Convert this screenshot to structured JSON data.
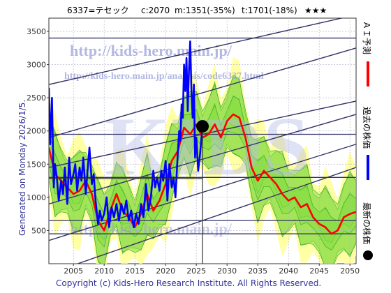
{
  "header": {
    "code_name": "6337=テセック",
    "current": "c:2070",
    "min": "m:1351(-35%)",
    "target": "t:1701(-18%)",
    "stars": "★★★"
  },
  "watermark": {
    "url1": "http://kids-hero.main.jp/",
    "url2": "http://kids-hero.main.jp/analysis/code6337.html",
    "big": "KIDS"
  },
  "generated_label": "Generated on Monday 2026/1/5.",
  "legend": {
    "forecast": "ＡＩ予測",
    "past": "過去の株価",
    "latest": "最新の株価"
  },
  "copyright": "Copyright (c) Kids-Hero Research Institute. All Rights Reserved.",
  "colors": {
    "forecast": "#ff0000",
    "past": "#0000ff",
    "latest": "#000000",
    "band_green": "#88dd44",
    "band_yellow": "#ffff99",
    "channel": "#333366"
  },
  "chart_data": {
    "type": "line",
    "x_range": [
      2001,
      2051
    ],
    "ylim": [
      0,
      3700
    ],
    "x_ticks": [
      2005,
      2010,
      2015,
      2020,
      2025,
      2030,
      2035,
      2040,
      2045,
      2050
    ],
    "y_ticks": [
      500,
      1000,
      1500,
      2000,
      2500,
      3000,
      3500
    ],
    "grid": true,
    "latest_point": {
      "x": 2026.0,
      "y": 2070
    },
    "horizontal_levels": [
      3400,
      1950,
      1300,
      650,
      450
    ],
    "channel_lines": [
      {
        "x": [
          2001,
          2051
        ],
        "y": [
          2700,
          3750
        ]
      },
      {
        "x": [
          2001,
          2051
        ],
        "y": [
          1900,
          3250
        ]
      },
      {
        "x": [
          2001,
          2051
        ],
        "y": [
          1450,
          2450
        ]
      },
      {
        "x": [
          2001,
          2051
        ],
        "y": [
          900,
          2250
        ]
      },
      {
        "x": [
          2001,
          2051
        ],
        "y": [
          350,
          1800
        ]
      },
      {
        "x": [
          2001,
          2051
        ],
        "y": [
          -150,
          1450
        ]
      }
    ],
    "series": [
      {
        "name": "過去の株価",
        "x": [
          2001,
          2001.2,
          2001.5,
          2001.8,
          2002.0,
          2002.3,
          2002.6,
          2003.0,
          2003.3,
          2003.6,
          2004.0,
          2004.3,
          2004.6,
          2005.0,
          2005.3,
          2005.6,
          2006.0,
          2006.3,
          2006.6,
          2007.0,
          2007.3,
          2007.6,
          2008.0,
          2008.3,
          2008.6,
          2009.0,
          2009.3,
          2009.6,
          2010.0,
          2010.4,
          2010.8,
          2011.2,
          2011.6,
          2012.0,
          2012.4,
          2012.8,
          2013.2,
          2013.6,
          2014.0,
          2014.4,
          2014.8,
          2015.2,
          2015.6,
          2016.0,
          2016.4,
          2016.8,
          2017.2,
          2017.6,
          2018.0,
          2018.3,
          2018.6,
          2019.0,
          2019.3,
          2019.6,
          2020.0,
          2020.3,
          2020.6,
          2021.0,
          2021.3,
          2021.6,
          2022.0,
          2022.2,
          2022.4,
          2022.6,
          2022.8,
          2023.0,
          2023.2,
          2023.4,
          2023.6,
          2023.8,
          2024.0,
          2024.2,
          2024.4,
          2024.6,
          2024.8,
          2025.0,
          2025.3,
          2025.6,
          2026.0
        ],
        "y": [
          2650,
          1800,
          2500,
          1150,
          1500,
          1300,
          950,
          1250,
          1050,
          1450,
          900,
          1600,
          1200,
          1350,
          1500,
          1100,
          1450,
          1250,
          1600,
          1050,
          1400,
          1750,
          1200,
          1350,
          950,
          600,
          800,
          650,
          750,
          1000,
          550,
          850,
          700,
          900,
          650,
          900,
          750,
          950,
          650,
          800,
          550,
          750,
          600,
          900,
          700,
          1200,
          800,
          1000,
          1400,
          1150,
          1300,
          1100,
          1400,
          1250,
          1550,
          950,
          1500,
          1150,
          1300,
          1000,
          1700,
          2000,
          1850,
          2400,
          2200,
          3000,
          2600,
          3100,
          2300,
          2900,
          3350,
          2600,
          2200,
          2700,
          1600,
          1900,
          1400,
          1650,
          2070
        ]
      },
      {
        "name": "ＡＩ予測",
        "x": [
          2001,
          2002,
          2003,
          2004,
          2005,
          2006,
          2007,
          2008,
          2009,
          2010,
          2011,
          2012,
          2013,
          2014,
          2015,
          2016,
          2017,
          2018,
          2019,
          2020,
          2021,
          2022,
          2023,
          2024,
          2025,
          2026,
          2027,
          2028,
          2029,
          2030,
          2031,
          2032,
          2033,
          2034,
          2035,
          2036,
          2037,
          2038,
          2039,
          2040,
          2041,
          2042,
          2043,
          2044,
          2045,
          2046,
          2047,
          2048,
          2049,
          2050,
          2051
        ],
        "y": [
          1750,
          1350,
          1250,
          1150,
          1050,
          1100,
          1250,
          1050,
          650,
          500,
          800,
          1050,
          800,
          700,
          550,
          750,
          1050,
          800,
          950,
          1200,
          1550,
          1700,
          2050,
          1950,
          2100,
          1900,
          1950,
          2100,
          1900,
          2150,
          2250,
          2200,
          1900,
          1450,
          1250,
          1400,
          1300,
          1200,
          1050,
          950,
          1000,
          850,
          900,
          700,
          600,
          550,
          450,
          500,
          700,
          750,
          780
        ]
      }
    ]
  }
}
